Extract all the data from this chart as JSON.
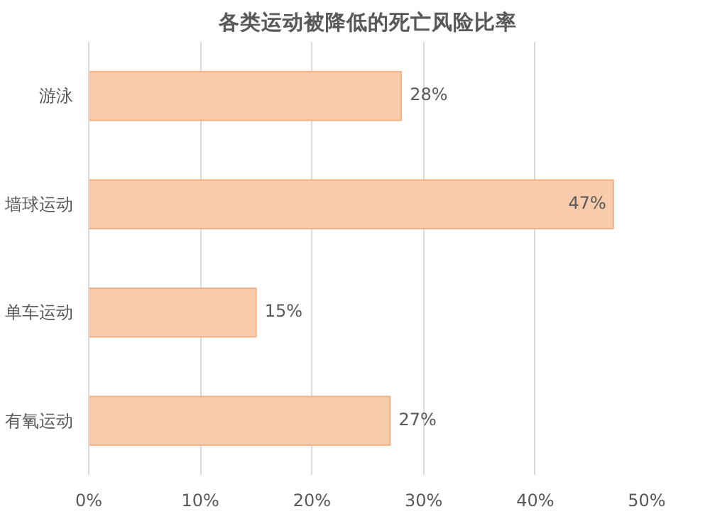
{
  "chart_data": {
    "type": "bar",
    "orientation": "horizontal",
    "title": "各类运动被降低的死亡风险比率",
    "categories": [
      "游泳",
      "墙球运动",
      "单车运动",
      "有氧运动"
    ],
    "values": [
      28,
      47,
      15,
      27
    ],
    "value_labels": [
      "28%",
      "47%",
      "15%",
      "27%"
    ],
    "color": "#f8cbad",
    "xlim": [
      0,
      50
    ],
    "xticks": [
      {
        "value": 0,
        "label": "0%"
      },
      {
        "value": 10,
        "label": "10%"
      },
      {
        "value": 20,
        "label": "20%"
      },
      {
        "value": 30,
        "label": "30%"
      },
      {
        "value": 40,
        "label": "40%"
      },
      {
        "value": 50,
        "label": "50%"
      }
    ],
    "grid": "x"
  }
}
